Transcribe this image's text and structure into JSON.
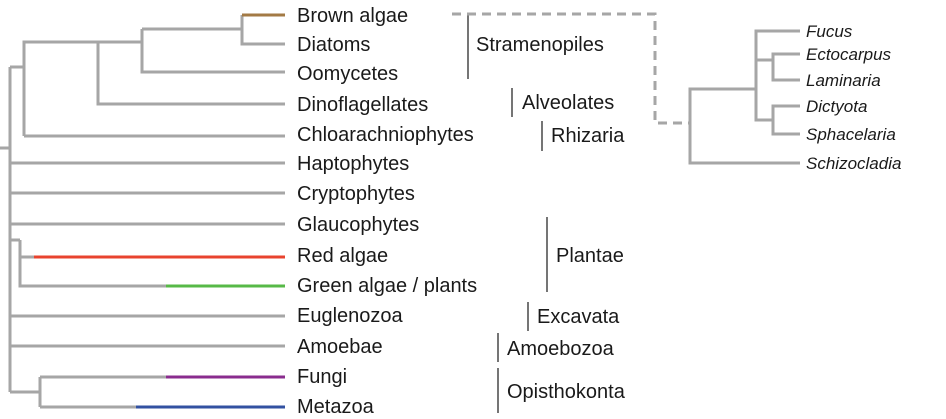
{
  "colors": {
    "branch": "#a6a6a6",
    "brown": "#a37a45",
    "red": "#e8432e",
    "green": "#57b947",
    "purple": "#8a2c8e",
    "blue": "#3251a1"
  },
  "taxa": {
    "brown_algae": "Brown algae",
    "diatoms": "Diatoms",
    "oomycetes": "Oomycetes",
    "dinoflagellates": "Dinoflagellates",
    "chlorarachniophytes": "Chloarachniophytes",
    "haptophytes": "Haptophytes",
    "cryptophytes": "Cryptophytes",
    "glaucophytes": "Glaucophytes",
    "red_algae": "Red algae",
    "green_algae": "Green algae / plants",
    "euglenozoa": "Euglenozoa",
    "amoebae": "Amoebae",
    "fungi": "Fungi",
    "metazoa": "Metazoa"
  },
  "groups": {
    "stramenopiles": "Stramenopiles",
    "alveolates": "Alveolates",
    "rhizaria": "Rhizaria",
    "plantae": "Plantae",
    "excavata": "Excavata",
    "amoebozoa": "Amoebozoa",
    "opisthokonta": "Opisthokonta"
  },
  "genera": {
    "fucus": "Fucus",
    "ectocarpus": "Ectocarpus",
    "laminaria": "Laminaria",
    "dictyota": "Dictyota",
    "sphacelaria": "Sphacelaria",
    "schizocladia": "Schizocladia"
  }
}
